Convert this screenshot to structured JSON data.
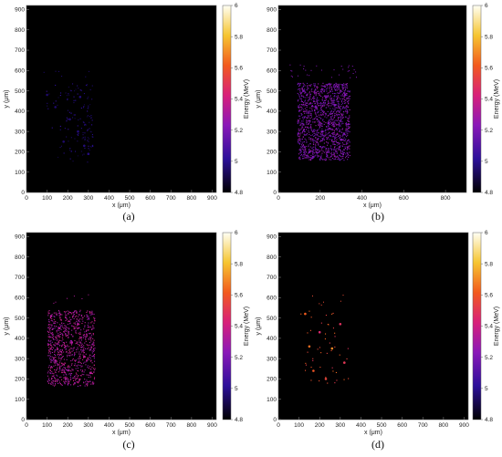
{
  "chart_data": [
    {
      "type": "heatmap",
      "panel_label": "(a)",
      "xlabel": "x (μm)",
      "ylabel": "y (μm)",
      "colorbar_label": "Energy (MeV)",
      "xlim": [
        0,
        920
      ],
      "ylim": [
        0,
        920
      ],
      "x_ticks": [
        "0",
        "100",
        "200",
        "300",
        "400",
        "500",
        "600",
        "700",
        "800",
        "900"
      ],
      "y_ticks": [
        "0",
        "100",
        "200",
        "300",
        "400",
        "500",
        "600",
        "700",
        "800",
        "900"
      ],
      "colorbar_range": [
        4.8,
        6.0
      ],
      "colorbar_ticks": [
        "4.8",
        "5",
        "5.2",
        "5.4",
        "5.6",
        "5.8",
        "6"
      ],
      "region": {
        "x_range": [
          80,
          320
        ],
        "y_range": [
          150,
          540
        ]
      },
      "points": [
        {
          "x": 100,
          "y": 480,
          "energy": 4.95
        },
        {
          "x": 140,
          "y": 420,
          "energy": 4.95
        },
        {
          "x": 210,
          "y": 360,
          "energy": 4.96
        },
        {
          "x": 250,
          "y": 300,
          "energy": 4.97
        },
        {
          "x": 280,
          "y": 230,
          "energy": 4.97
        },
        {
          "x": 300,
          "y": 190,
          "energy": 4.98
        },
        {
          "x": 260,
          "y": 470,
          "energy": 4.97
        },
        {
          "x": 180,
          "y": 250,
          "energy": 4.95
        }
      ]
    },
    {
      "type": "heatmap",
      "panel_label": "(b)",
      "xlabel": "x (μm)",
      "ylabel": "y (μm)",
      "colorbar_label": "Energy (MeV)",
      "xlim": [
        0,
        900
      ],
      "ylim": [
        0,
        920
      ],
      "x_ticks": [
        "0",
        "200",
        "400",
        "600",
        "800"
      ],
      "y_ticks": [
        "0",
        "100",
        "200",
        "300",
        "400",
        "500",
        "600",
        "700",
        "800",
        "900"
      ],
      "colorbar_range": [
        4.8,
        6.0
      ],
      "colorbar_ticks": [
        "4.8",
        "5",
        "5.2",
        "5.4",
        "5.6",
        "5.8",
        "6"
      ],
      "region": {
        "x_range": [
          90,
          340
        ],
        "y_range": [
          160,
          540
        ]
      },
      "points": [
        {
          "x": 120,
          "y": 500,
          "energy": 5.2
        },
        {
          "x": 180,
          "y": 420,
          "energy": 5.22
        },
        {
          "x": 240,
          "y": 340,
          "energy": 5.21
        },
        {
          "x": 300,
          "y": 260,
          "energy": 5.23
        },
        {
          "x": 150,
          "y": 200,
          "energy": 5.2
        },
        {
          "x": 320,
          "y": 480,
          "energy": 5.22
        },
        {
          "x": 210,
          "y": 300,
          "energy": 5.21
        },
        {
          "x": 270,
          "y": 430,
          "energy": 5.2
        }
      ]
    },
    {
      "type": "heatmap",
      "panel_label": "(c)",
      "xlabel": "x (μm)",
      "ylabel": "y (μm)",
      "colorbar_label": "Energy (MeV)",
      "xlim": [
        0,
        920
      ],
      "ylim": [
        0,
        920
      ],
      "x_ticks": [
        "0",
        "100",
        "200",
        "300",
        "400",
        "500",
        "600",
        "700",
        "800",
        "900"
      ],
      "y_ticks": [
        "0",
        "100",
        "200",
        "300",
        "400",
        "500",
        "600",
        "700",
        "800",
        "900"
      ],
      "colorbar_range": [
        4.8,
        6.0
      ],
      "colorbar_ticks": [
        "4.8",
        "5",
        "5.2",
        "5.4",
        "5.6",
        "5.8",
        "6"
      ],
      "region": {
        "x_range": [
          100,
          330
        ],
        "y_range": [
          165,
          540
        ]
      },
      "points": [
        {
          "x": 120,
          "y": 510,
          "energy": 5.32
        },
        {
          "x": 160,
          "y": 450,
          "energy": 5.33
        },
        {
          "x": 220,
          "y": 380,
          "energy": 5.32
        },
        {
          "x": 280,
          "y": 310,
          "energy": 5.34
        },
        {
          "x": 310,
          "y": 230,
          "energy": 5.33
        },
        {
          "x": 190,
          "y": 200,
          "energy": 5.32
        },
        {
          "x": 250,
          "y": 470,
          "energy": 5.33
        },
        {
          "x": 140,
          "y": 290,
          "energy": 5.32
        }
      ]
    },
    {
      "type": "heatmap",
      "panel_label": "(d)",
      "xlabel": "x (μm)",
      "ylabel": "y (μm)",
      "colorbar_label": "Energy (MeV)",
      "xlim": [
        0,
        920
      ],
      "ylim": [
        0,
        920
      ],
      "x_ticks": [
        "0",
        "100",
        "200",
        "300",
        "400",
        "500",
        "600",
        "700",
        "800",
        "900"
      ],
      "y_ticks": [
        "0",
        "100",
        "200",
        "300",
        "400",
        "500",
        "600",
        "700",
        "800",
        "900"
      ],
      "colorbar_range": [
        4.8,
        6.0
      ],
      "colorbar_ticks": [
        "4.8",
        "5",
        "5.2",
        "5.4",
        "5.6",
        "5.8",
        "6"
      ],
      "region": {
        "x_range": [
          100,
          340
        ],
        "y_range": [
          180,
          540
        ]
      },
      "points": [
        {
          "x": 130,
          "y": 520,
          "energy": 5.62
        },
        {
          "x": 200,
          "y": 430,
          "energy": 5.45
        },
        {
          "x": 260,
          "y": 350,
          "energy": 5.7
        },
        {
          "x": 320,
          "y": 280,
          "energy": 5.5
        },
        {
          "x": 170,
          "y": 240,
          "energy": 5.6
        },
        {
          "x": 300,
          "y": 470,
          "energy": 5.48
        },
        {
          "x": 230,
          "y": 200,
          "energy": 5.55
        },
        {
          "x": 150,
          "y": 360,
          "energy": 5.65
        }
      ]
    }
  ]
}
